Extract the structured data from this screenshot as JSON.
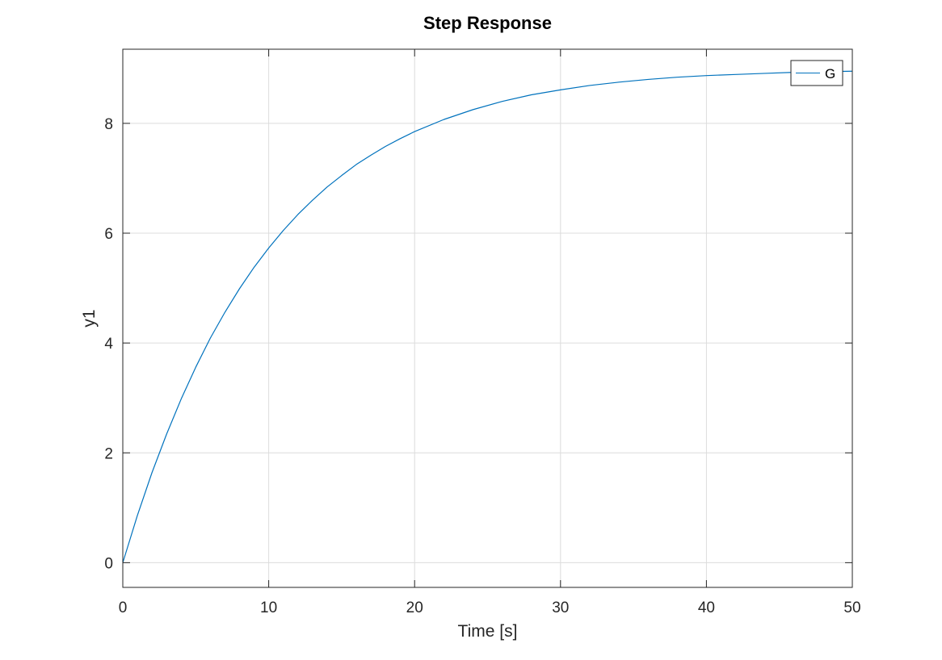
{
  "chart_data": {
    "type": "line",
    "title": "Step Response",
    "xlabel": "Time [s]",
    "ylabel": "y1",
    "xlim": [
      0,
      50
    ],
    "ylim": [
      -0.45,
      9.35
    ],
    "xticks": [
      0,
      10,
      20,
      30,
      40,
      50
    ],
    "yticks": [
      0,
      2,
      4,
      6,
      8
    ],
    "xtick_labels": [
      "0",
      "10",
      "20",
      "30",
      "40",
      "50"
    ],
    "ytick_labels": [
      "0",
      "2",
      "4",
      "6",
      "8"
    ],
    "grid": true,
    "legend_position": "top-right",
    "series": [
      {
        "name": "G",
        "color": "#0072bd",
        "x": [
          0,
          1,
          2,
          3,
          4,
          5,
          6,
          7,
          8,
          9,
          10,
          11,
          12,
          13,
          14,
          15,
          16,
          17,
          18,
          19,
          20,
          22,
          24,
          26,
          28,
          30,
          32,
          34,
          36,
          38,
          40,
          42,
          44,
          46,
          48,
          50
        ],
        "y": [
          0,
          0.86,
          1.64,
          2.34,
          2.98,
          3.56,
          4.09,
          4.56,
          4.99,
          5.38,
          5.73,
          6.05,
          6.34,
          6.6,
          6.84,
          7.05,
          7.25,
          7.42,
          7.58,
          7.72,
          7.85,
          8.07,
          8.25,
          8.4,
          8.52,
          8.61,
          8.69,
          8.75,
          8.8,
          8.84,
          8.87,
          8.89,
          8.91,
          8.93,
          8.94,
          8.95
        ]
      }
    ]
  }
}
